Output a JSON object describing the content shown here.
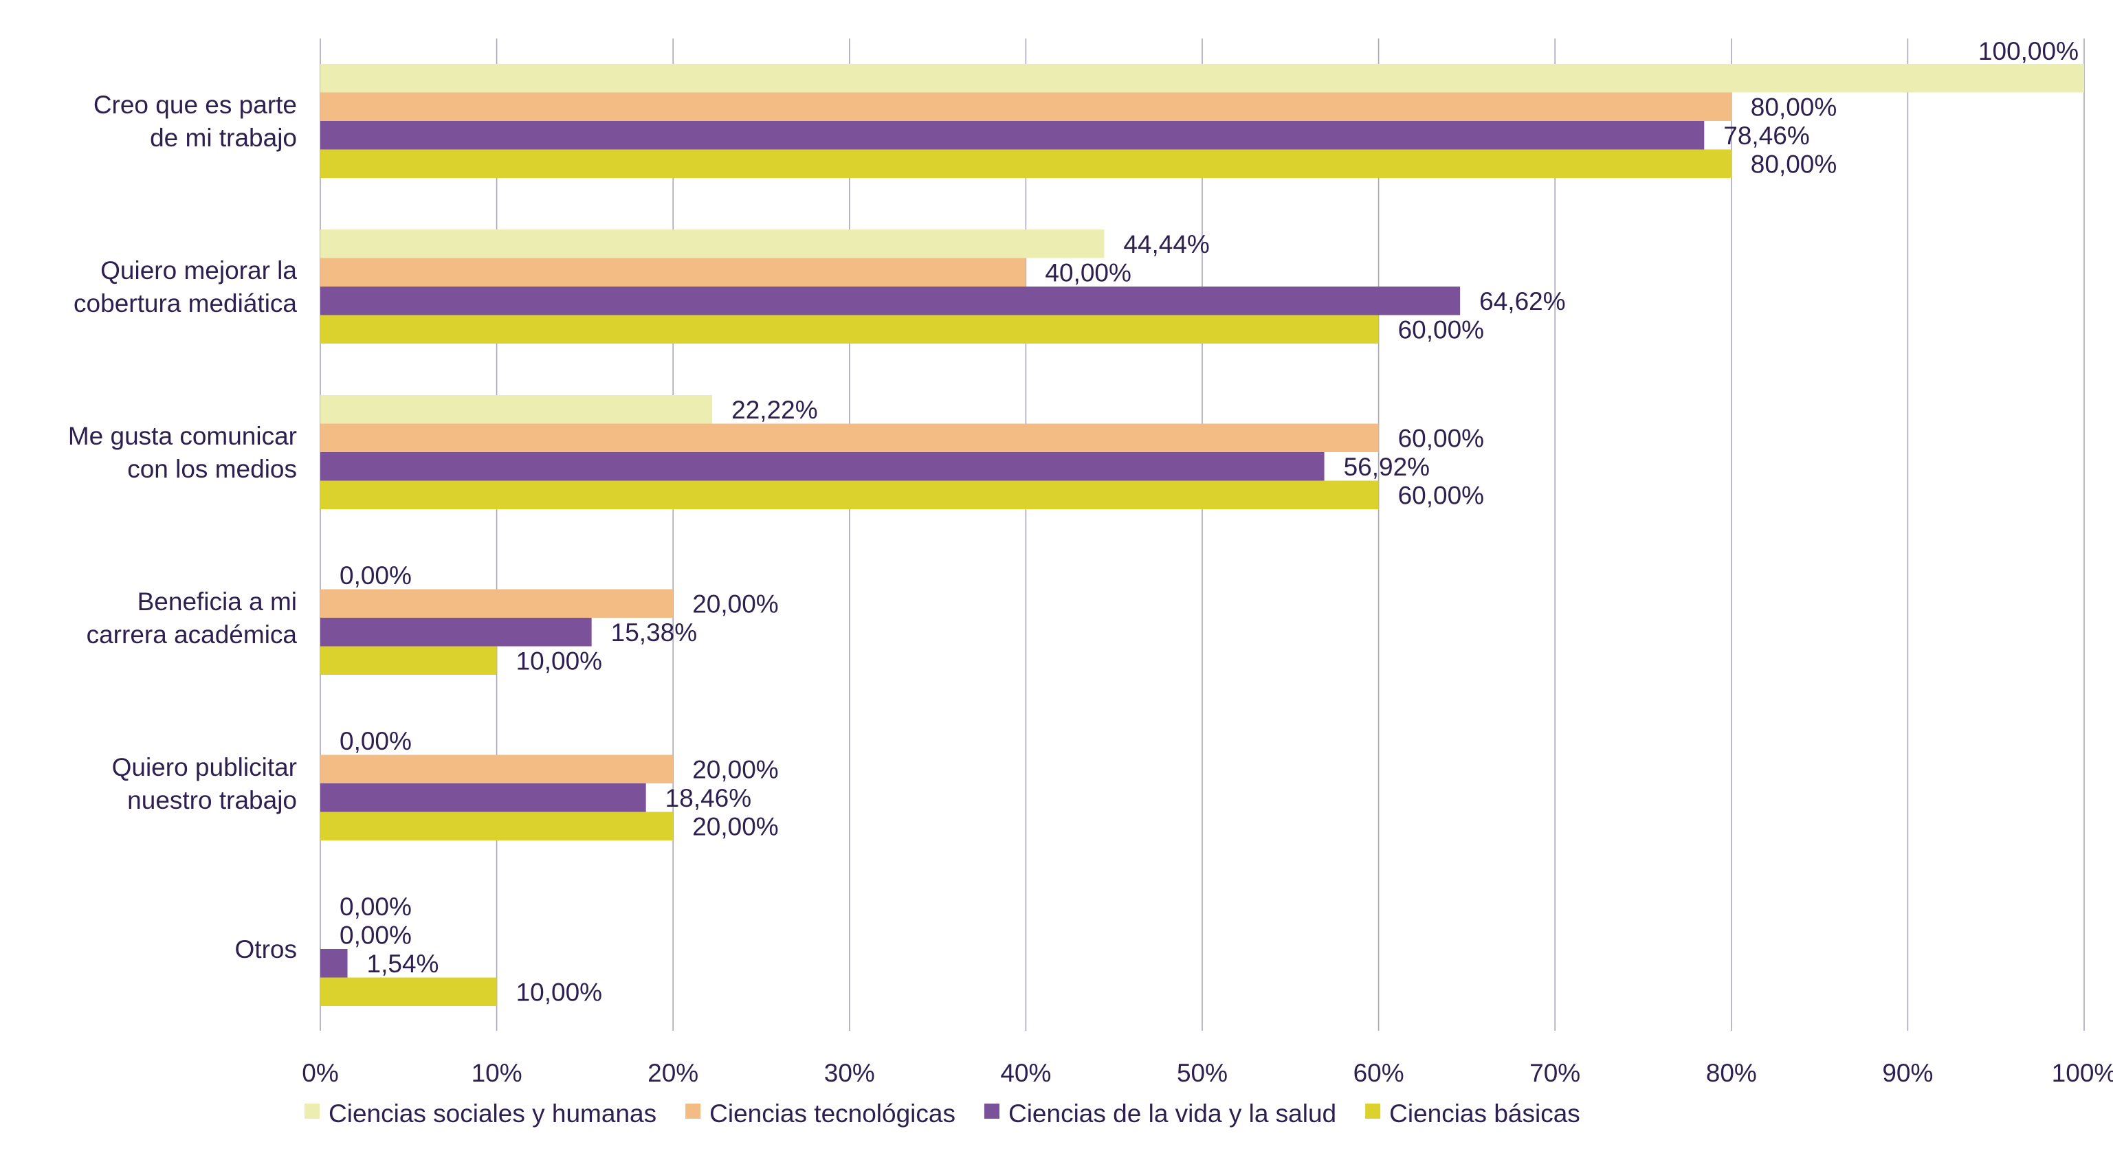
{
  "chart_data": {
    "type": "bar",
    "orientation": "horizontal",
    "title": "",
    "xlabel": "",
    "ylabel": "",
    "xlim": [
      0,
      100
    ],
    "x_ticks": [
      "0%",
      "10%",
      "20%",
      "30%",
      "40%",
      "50%",
      "60%",
      "70%",
      "80%",
      "90%",
      "100%"
    ],
    "grid": true,
    "legend_position": "bottom",
    "categories": [
      [
        "Creo que es parte",
        "de mi trabajo"
      ],
      [
        "Quiero mejorar la",
        "cobertura mediática"
      ],
      [
        "Me gusta comunicar",
        "con los medios"
      ],
      [
        "Beneficia a mi",
        "carrera académica"
      ],
      [
        "Quiero publicitar",
        "nuestro trabajo"
      ],
      [
        "Otros"
      ]
    ],
    "series": [
      {
        "name": "Ciencias sociales y humanas",
        "color": "#ecedb1",
        "values": [
          100.0,
          44.44,
          22.22,
          0.0,
          0.0,
          0.0
        ],
        "labels": [
          "100,00%",
          "44,44%",
          "22,22%",
          "0,00%",
          "0,00%",
          "0,00%"
        ]
      },
      {
        "name": "Ciencias tecnológicas",
        "color": "#f3bc85",
        "values": [
          80.0,
          40.0,
          60.0,
          20.0,
          20.0,
          0.0
        ],
        "labels": [
          "80,00%",
          "40,00%",
          "60,00%",
          "20,00%",
          "20,00%",
          "0,00%"
        ]
      },
      {
        "name": "Ciencias de la vida y la salud",
        "color": "#7b519a",
        "values": [
          78.46,
          64.62,
          56.92,
          15.38,
          18.46,
          1.54
        ],
        "labels": [
          "78,46%",
          "64,62%",
          "56,92%",
          "15,38%",
          "18,46%",
          "1,54%"
        ]
      },
      {
        "name": "Ciencias básicas",
        "color": "#dbd22e",
        "values": [
          80.0,
          60.0,
          60.0,
          10.0,
          20.0,
          10.0
        ],
        "labels": [
          "80,00%",
          "60,00%",
          "60,00%",
          "10,00%",
          "20,00%",
          "10,00%"
        ]
      }
    ]
  }
}
